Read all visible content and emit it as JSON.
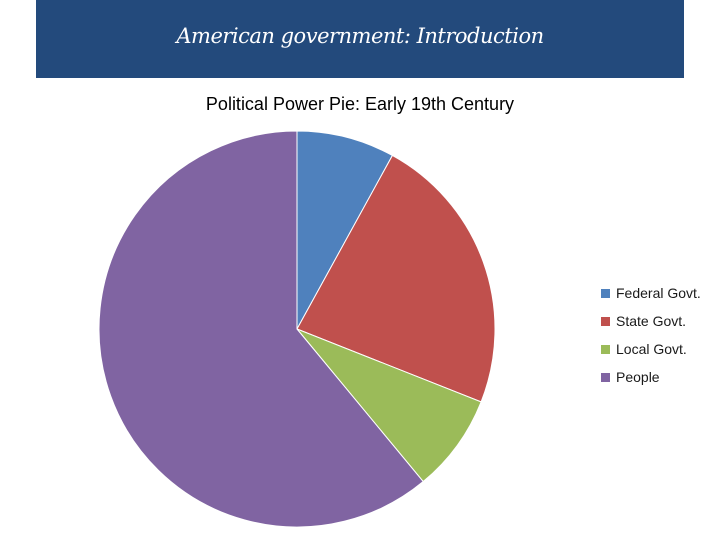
{
  "slide": {
    "title": "American government: Introduction",
    "header_color": "#234a7c"
  },
  "chart_data": {
    "type": "pie",
    "title": "Political Power Pie: Early 19th Century",
    "slices": [
      {
        "label": "Federal Govt.",
        "value": 8,
        "color": "#4f81bd"
      },
      {
        "label": "State Govt.",
        "value": 23,
        "color": "#c0504d"
      },
      {
        "label": "Local Govt.",
        "value": 8,
        "color": "#9bbb59"
      },
      {
        "label": "People",
        "value": 61,
        "color": "#8064a2"
      }
    ],
    "legend_position": "right"
  }
}
